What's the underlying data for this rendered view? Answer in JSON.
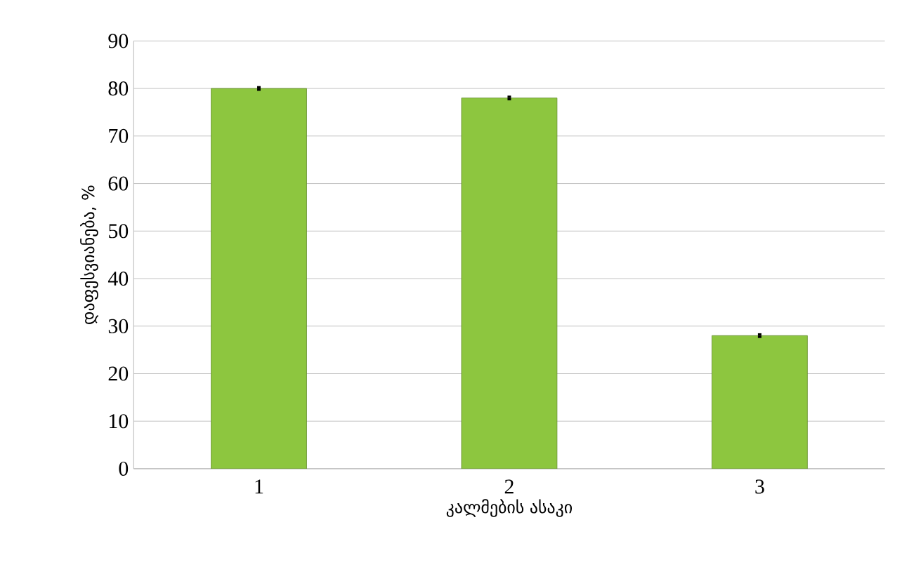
{
  "chart_data": {
    "type": "bar",
    "xlabel": "კალმების ასაკი",
    "ylabel": "დაფესვიანება, %",
    "categories": [
      "1",
      "2",
      "3"
    ],
    "values": [
      80,
      78,
      28
    ],
    "errors": [
      0.5,
      0.5,
      0.5
    ],
    "color": "#8dc63f",
    "ylim": [
      0,
      90
    ],
    "yticks": [
      0,
      10,
      20,
      30,
      40,
      50,
      60,
      70,
      80,
      90
    ],
    "grid": "y"
  }
}
